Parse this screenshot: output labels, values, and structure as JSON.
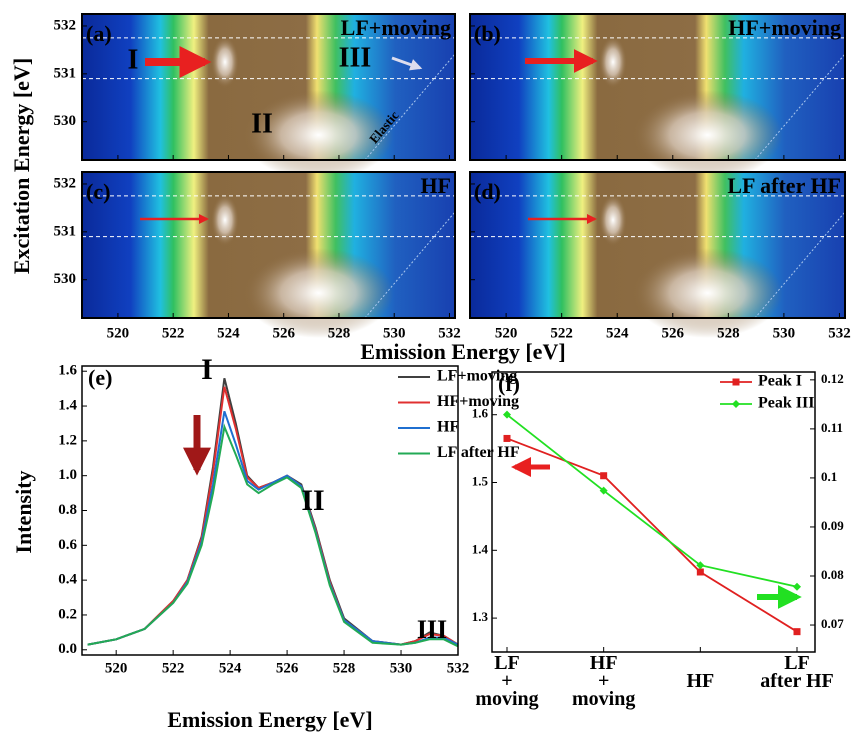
{
  "labels": {
    "top_xlabel": "Emission Energy [eV]",
    "top_ylabel": "Excitation Energy [eV]"
  },
  "chart_data": [
    {
      "type": "heatmap",
      "panel_label": "(a)",
      "condition": "LF+moving",
      "annotations": [
        "I",
        "II",
        "III",
        "Elastic"
      ],
      "xlim": [
        518.7,
        532.2
      ],
      "ylim": [
        529.2,
        532.25
      ],
      "xticks": [
        520,
        522,
        524,
        526,
        528,
        530,
        532
      ],
      "yticks": [
        530,
        531,
        532
      ],
      "guide_lines": [
        531.75,
        530.9
      ]
    },
    {
      "type": "heatmap",
      "panel_label": "(b)",
      "condition": "HF+moving",
      "annotations": [],
      "xlim": [
        518.7,
        532.2
      ],
      "ylim": [
        529.2,
        532.25
      ],
      "xticks": [
        520,
        522,
        524,
        526,
        528,
        530,
        532
      ],
      "yticks": [
        530,
        531,
        532
      ],
      "guide_lines": [
        531.75,
        530.9
      ]
    },
    {
      "type": "heatmap",
      "panel_label": "(c)",
      "condition": "HF",
      "annotations": [],
      "xlim": [
        518.7,
        532.2
      ],
      "ylim": [
        529.2,
        532.25
      ],
      "xticks": [
        520,
        522,
        524,
        526,
        528,
        530,
        532
      ],
      "yticks": [
        530,
        531,
        532
      ],
      "guide_lines": [
        531.75,
        530.9
      ]
    },
    {
      "type": "heatmap",
      "panel_label": "(d)",
      "condition": "LF after HF",
      "annotations": [],
      "xlim": [
        518.7,
        532.2
      ],
      "ylim": [
        529.2,
        532.25
      ],
      "xticks": [
        520,
        522,
        524,
        526,
        528,
        530,
        532
      ],
      "yticks": [
        530,
        531,
        532
      ],
      "guide_lines": [
        531.75,
        530.9
      ]
    },
    {
      "type": "line",
      "panel_label": "(e)",
      "annotations": [
        "I",
        "II",
        "III"
      ],
      "xlabel": "Emission Energy [eV]",
      "ylabel": "Intensity",
      "x": [
        519,
        520,
        521,
        522,
        522.5,
        523,
        523.4,
        523.8,
        524.2,
        524.6,
        525,
        525.5,
        526,
        526.5,
        527,
        527.5,
        528,
        529,
        530,
        530.5,
        531,
        531.5,
        532
      ],
      "series": [
        {
          "name": "LF+moving",
          "color": "#404040",
          "values": [
            0.03,
            0.06,
            0.12,
            0.28,
            0.4,
            0.65,
            1.05,
            1.56,
            1.3,
            1.0,
            0.93,
            0.96,
            1.0,
            0.95,
            0.7,
            0.4,
            0.18,
            0.05,
            0.03,
            0.05,
            0.1,
            0.08,
            0.03
          ]
        },
        {
          "name": "HF+moving",
          "color": "#e03030",
          "values": [
            0.03,
            0.06,
            0.12,
            0.28,
            0.4,
            0.64,
            1.02,
            1.51,
            1.27,
            0.99,
            0.93,
            0.96,
            1.0,
            0.94,
            0.69,
            0.39,
            0.17,
            0.05,
            0.03,
            0.05,
            0.09,
            0.08,
            0.03
          ]
        },
        {
          "name": "HF",
          "color": "#1f6fd0",
          "values": [
            0.03,
            0.06,
            0.12,
            0.27,
            0.39,
            0.62,
            0.95,
            1.37,
            1.18,
            0.97,
            0.92,
            0.96,
            1.0,
            0.94,
            0.68,
            0.38,
            0.17,
            0.05,
            0.03,
            0.04,
            0.07,
            0.07,
            0.03
          ]
        },
        {
          "name": "LF after HF",
          "color": "#22aa55",
          "values": [
            0.03,
            0.06,
            0.12,
            0.27,
            0.38,
            0.6,
            0.9,
            1.28,
            1.12,
            0.95,
            0.9,
            0.95,
            0.99,
            0.93,
            0.67,
            0.37,
            0.16,
            0.04,
            0.03,
            0.04,
            0.06,
            0.06,
            0.02
          ]
        }
      ],
      "xlim": [
        518.8,
        532
      ],
      "ylim": [
        -0.03,
        1.63
      ],
      "xticks": [
        520,
        522,
        524,
        526,
        528,
        530,
        532
      ],
      "yticks": [
        {
          "value": 0,
          "label": "0.0"
        },
        0.2,
        0.4,
        0.6,
        0.8,
        {
          "value": 1,
          "label": "1.0"
        },
        1.2,
        1.4,
        1.6
      ],
      "legend": "upper right"
    },
    {
      "type": "line",
      "panel_label": "(f)",
      "categories": [
        "LF\n+\nmoving",
        "HF\n+\nmoving",
        "HF",
        "LF\nafter HF"
      ],
      "series": [
        {
          "name": "Peak I",
          "color": "#e02020",
          "marker": "square",
          "values": [
            1.565,
            1.51,
            1.368,
            1.28
          ]
        },
        {
          "name": "Peak III",
          "color": "#22e022",
          "marker": "diamond",
          "axis": "y2",
          "values": [
            0.1129,
            0.0974,
            0.0822,
            0.0778
          ]
        }
      ],
      "ylim": [
        1.25,
        1.663
      ],
      "yticks": [
        1.3,
        1.4,
        1.5,
        1.6
      ],
      "y2lim": [
        0.0645,
        0.1216
      ],
      "y2ticks": [
        0.07,
        0.08,
        0.09,
        0.1,
        0.11,
        0.12
      ],
      "legend": "upper right"
    }
  ]
}
